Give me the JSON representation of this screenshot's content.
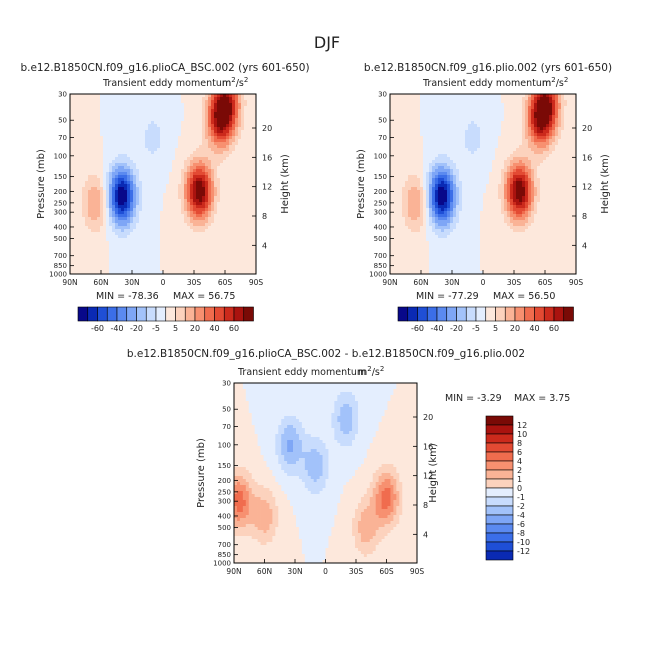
{
  "page_title": "DJF",
  "colors": {
    "neg": [
      "#08088a",
      "#0a2ab4",
      "#1f4fd6",
      "#3b6ee8",
      "#5b8af0",
      "#7ea6f6",
      "#a2c2fa",
      "#c8dcfd",
      "#e4eefe"
    ],
    "pos": [
      "#fde8dc",
      "#fcd2bd",
      "#fab396",
      "#f79070",
      "#f06c4e",
      "#e34a33",
      "#cc2a1c",
      "#aa130f",
      "#7a0a06"
    ]
  },
  "chart_data": [
    {
      "type": "heatmap",
      "title": "b.e12.B1850CN.f09_g16.plioCA_BSC.002 (yrs 601-650)",
      "subtitle": "Transient eddy momentum",
      "units_base": "m",
      "units_sup1": "2",
      "units_mid": "/s",
      "units_sup2": "2",
      "ylabel": "Pressure (mb)",
      "ylabel_right": "Height (km)",
      "x_ticks": [
        "90N",
        "60N",
        "30N",
        "0",
        "30S",
        "60S",
        "90S"
      ],
      "y_ticks": [
        "30",
        "50",
        "70",
        "100",
        "150",
        "200",
        "250",
        "300",
        "400",
        "500",
        "700",
        "850",
        "1000"
      ],
      "y_ticks_right": [
        "20",
        "16",
        "12",
        "8",
        "4"
      ],
      "min_text": "MIN = -78.36",
      "max_text": "MAX = 56.75",
      "min": -78.36,
      "max": 56.75,
      "colorbar_labels": [
        "-60",
        "-40",
        "-20",
        "-5",
        "5",
        "20",
        "40",
        "60"
      ],
      "features": [
        {
          "lat": -35,
          "p": 200,
          "amp": 1.0
        },
        {
          "lat": -55,
          "p": 50,
          "amp": 0.75
        },
        {
          "lat": -62,
          "p": 35,
          "amp": 0.65
        },
        {
          "lat": 40,
          "p": 220,
          "amp": -1.0
        },
        {
          "lat": 65,
          "p": 250,
          "amp": 0.35
        },
        {
          "lat": 10,
          "p": 70,
          "amp": -0.15
        }
      ]
    },
    {
      "type": "heatmap",
      "title": "b.e12.B1850CN.f09_g16.plio.002 (yrs 601-650)",
      "subtitle": "Transient eddy momentum",
      "units_base": "m",
      "units_sup1": "2",
      "units_mid": "/s",
      "units_sup2": "2",
      "ylabel": "Pressure (mb)",
      "ylabel_right": "Height (km)",
      "x_ticks": [
        "90N",
        "60N",
        "30N",
        "0",
        "30S",
        "60S",
        "90S"
      ],
      "y_ticks": [
        "30",
        "50",
        "70",
        "100",
        "150",
        "200",
        "250",
        "300",
        "400",
        "500",
        "700",
        "850",
        "1000"
      ],
      "y_ticks_right": [
        "20",
        "16",
        "12",
        "8",
        "4"
      ],
      "min_text": "MIN = -77.29",
      "max_text": "MAX = 56.50",
      "min": -77.29,
      "max": 56.5,
      "colorbar_labels": [
        "-60",
        "-40",
        "-20",
        "-5",
        "5",
        "20",
        "40",
        "60"
      ],
      "features": [
        {
          "lat": -35,
          "p": 200,
          "amp": 1.0
        },
        {
          "lat": -55,
          "p": 50,
          "amp": 0.75
        },
        {
          "lat": -62,
          "p": 35,
          "amp": 0.65
        },
        {
          "lat": 40,
          "p": 220,
          "amp": -1.0
        },
        {
          "lat": 65,
          "p": 250,
          "amp": 0.35
        },
        {
          "lat": 10,
          "p": 70,
          "amp": -0.15
        }
      ]
    },
    {
      "type": "heatmap",
      "title": "b.e12.B1850CN.f09_g16.plioCA_BSC.002 - b.e12.B1850CN.f09_g16.plio.002",
      "subtitle": "Transient eddy momentum",
      "units_base": "m",
      "units_sup1": "2",
      "units_mid": "/s",
      "units_sup2": "2",
      "ylabel": "Pressure (mb)",
      "ylabel_right": "Height (km)",
      "x_ticks": [
        "90N",
        "60N",
        "30N",
        "0",
        "30S",
        "60S",
        "90S"
      ],
      "y_ticks": [
        "30",
        "50",
        "70",
        "100",
        "150",
        "200",
        "250",
        "300",
        "400",
        "500",
        "700",
        "850",
        "1000"
      ],
      "y_ticks_right": [
        "20",
        "16",
        "12",
        "8",
        "4"
      ],
      "min_text": "MIN = -3.29",
      "max_text": "MAX = 3.75",
      "min": -3.29,
      "max": 3.75,
      "colorbar_labels": [
        "12",
        "10",
        "8",
        "6",
        "4",
        "2",
        "1",
        "0",
        "-1",
        "-2",
        "-4",
        "-6",
        "-8",
        "-10",
        "-12"
      ],
      "features": [
        {
          "lat": -60,
          "p": 280,
          "amp": 0.5
        },
        {
          "lat": -40,
          "p": 500,
          "amp": 0.3
        },
        {
          "lat": 10,
          "p": 150,
          "amp": -0.3
        },
        {
          "lat": 35,
          "p": 100,
          "amp": -0.35
        },
        {
          "lat": 60,
          "p": 400,
          "amp": 0.3
        },
        {
          "lat": 85,
          "p": 300,
          "amp": 0.5
        },
        {
          "lat": -20,
          "p": 60,
          "amp": -0.3
        }
      ]
    }
  ]
}
